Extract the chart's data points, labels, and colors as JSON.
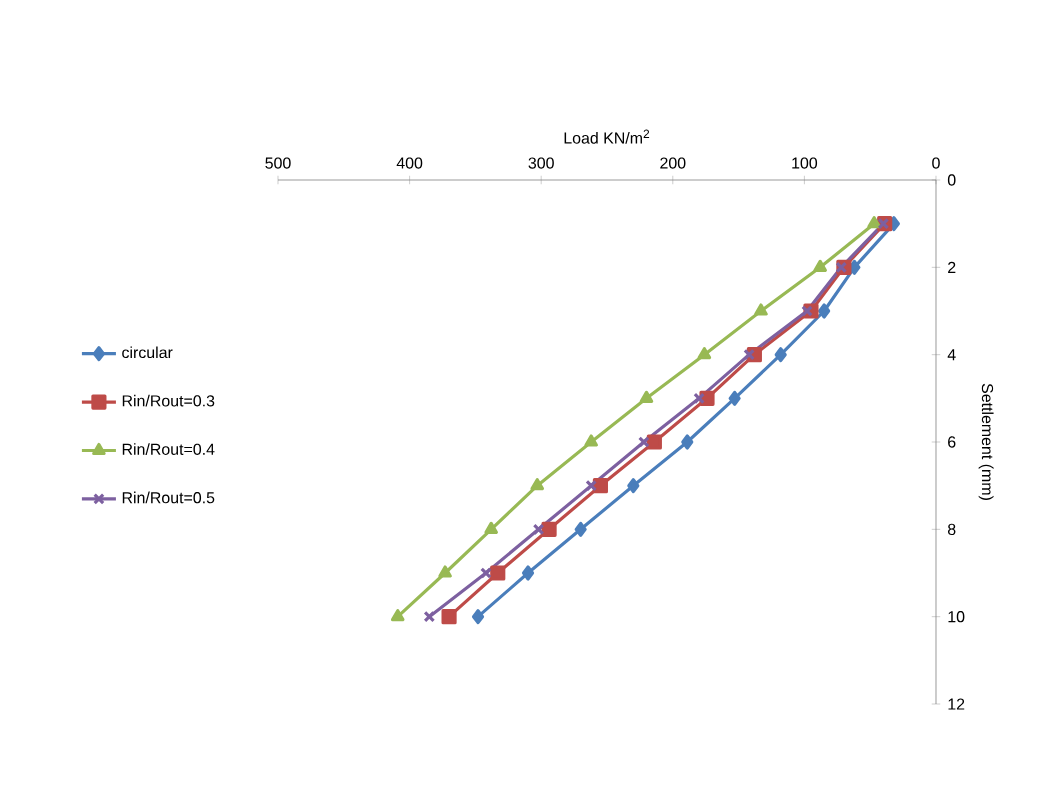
{
  "chart_data": {
    "type": "line",
    "xlabel": "Load KN/m$^{2}$",
    "ylabel": "Settlement (mm)",
    "xlim": [
      500,
      0
    ],
    "xticks": [
      500,
      400,
      300,
      200,
      100,
      0
    ],
    "ylim": [
      12,
      0
    ],
    "yticks": [
      0,
      2,
      4,
      6,
      8,
      10,
      12
    ],
    "grid": false,
    "legend": "left",
    "series": [
      {
        "name": "circular",
        "color": "#4a7ebb",
        "marker": "diamond",
        "x": [
          32,
          62,
          85,
          118,
          153,
          189,
          230,
          270,
          310,
          348
        ],
        "values": [
          1,
          2,
          3,
          4,
          5,
          6,
          7,
          8,
          9,
          10
        ]
      },
      {
        "name": "Rin/Rout=0.3",
        "color": "#be4b48",
        "marker": "square",
        "x": [
          39,
          70,
          95,
          138,
          174,
          214,
          255,
          294,
          333,
          370
        ],
        "values": [
          1,
          2,
          3,
          4,
          5,
          6,
          7,
          8,
          9,
          10
        ]
      },
      {
        "name": "Rin/Rout=0.4",
        "color": "#98b954",
        "marker": "triangle",
        "x": [
          47,
          88,
          133,
          176,
          220,
          262,
          303,
          338,
          373,
          409
        ],
        "values": [
          1,
          2,
          3,
          4,
          5,
          6,
          7,
          8,
          9,
          10
        ]
      },
      {
        "name": "Rin/Rout=0.5",
        "color": "#7d60a0",
        "marker": "cross",
        "x": [
          40,
          72,
          98,
          142,
          180,
          222,
          262,
          302,
          342,
          385
        ],
        "values": [
          1,
          2,
          3,
          4,
          5,
          6,
          7,
          8,
          9,
          10
        ]
      }
    ]
  }
}
